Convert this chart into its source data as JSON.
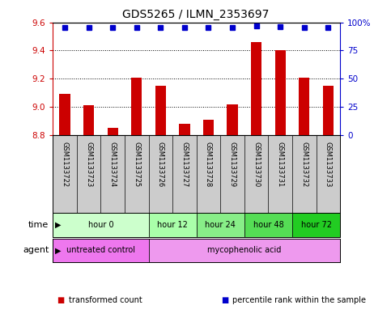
{
  "title": "GDS5265 / ILMN_2353697",
  "samples": [
    "GSM1133722",
    "GSM1133723",
    "GSM1133724",
    "GSM1133725",
    "GSM1133726",
    "GSM1133727",
    "GSM1133728",
    "GSM1133729",
    "GSM1133730",
    "GSM1133731",
    "GSM1133732",
    "GSM1133733"
  ],
  "bar_values": [
    9.09,
    9.01,
    8.85,
    9.21,
    9.15,
    8.88,
    8.91,
    9.02,
    9.46,
    9.4,
    9.21,
    9.15
  ],
  "percentile_values": [
    95,
    95,
    95,
    95,
    95,
    95,
    95,
    95,
    97,
    96,
    95,
    95
  ],
  "bar_color": "#cc0000",
  "percentile_color": "#0000cc",
  "ylim_left": [
    8.8,
    9.6
  ],
  "ylim_right": [
    0,
    100
  ],
  "yticks_left": [
    8.8,
    9.0,
    9.2,
    9.4,
    9.6
  ],
  "yticks_right": [
    0,
    25,
    50,
    75,
    100
  ],
  "ytick_labels_right": [
    "0",
    "25",
    "50",
    "75",
    "100%"
  ],
  "time_groups": [
    {
      "label": "hour 0",
      "start": 0,
      "end": 4,
      "color": "#ccffcc"
    },
    {
      "label": "hour 12",
      "start": 4,
      "end": 6,
      "color": "#aaffaa"
    },
    {
      "label": "hour 24",
      "start": 6,
      "end": 8,
      "color": "#88ee88"
    },
    {
      "label": "hour 48",
      "start": 8,
      "end": 10,
      "color": "#55dd55"
    },
    {
      "label": "hour 72",
      "start": 10,
      "end": 12,
      "color": "#22cc22"
    }
  ],
  "agent_groups": [
    {
      "label": "untreated control",
      "start": 0,
      "end": 4,
      "color": "#ee77ee"
    },
    {
      "label": "mycophenolic acid",
      "start": 4,
      "end": 12,
      "color": "#ee99ee"
    }
  ],
  "background_color": "#ffffff",
  "sample_bg_color": "#cccccc",
  "legend_items": [
    {
      "label": "transformed count",
      "color": "#cc0000"
    },
    {
      "label": "percentile rank within the sample",
      "color": "#0000cc"
    }
  ]
}
